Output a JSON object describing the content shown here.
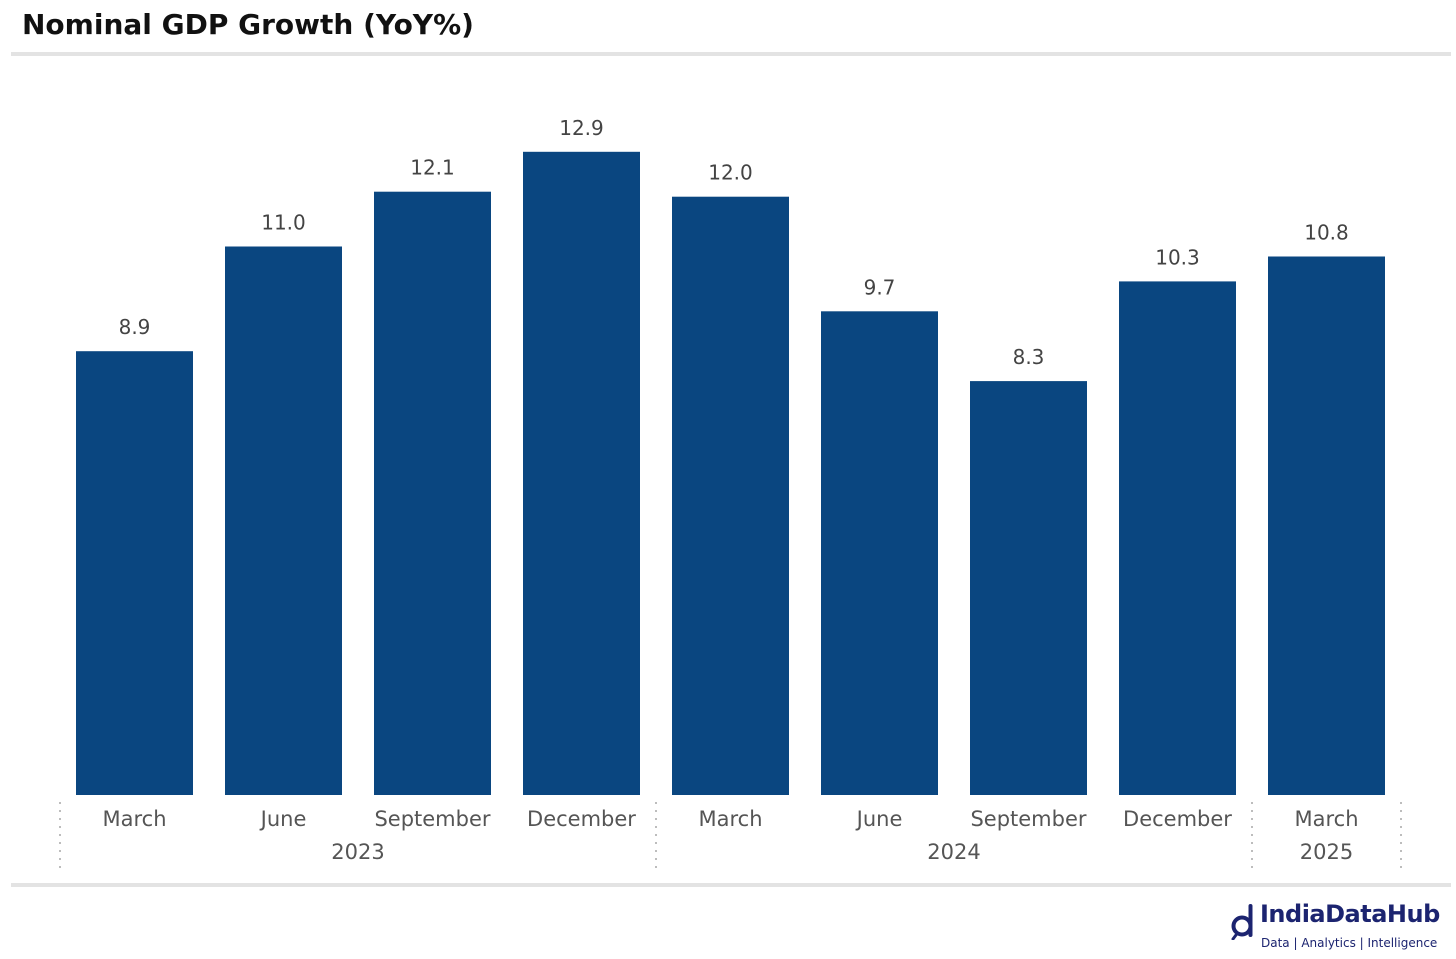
{
  "title": "Nominal GDP Growth (YoY%)",
  "colors": {
    "bar": "#0a4680",
    "label": "#444444",
    "axis_text": "#555555",
    "rule": "#e3e3e3",
    "separator": "#bdbdbd",
    "logo": "#1c2470"
  },
  "chart_data": {
    "type": "bar",
    "title": "Nominal GDP Growth (YoY%)",
    "categories": [
      "March",
      "June",
      "September",
      "December",
      "March",
      "June",
      "September",
      "December",
      "March"
    ],
    "groups": [
      {
        "label": "2023",
        "start": 0,
        "end": 3
      },
      {
        "label": "2024",
        "start": 4,
        "end": 7
      },
      {
        "label": "2025",
        "start": 8,
        "end": 8
      }
    ],
    "series": [
      {
        "values": [
          8.9,
          11.0,
          12.1,
          12.9,
          12.0,
          9.7,
          8.3,
          10.3,
          10.8
        ]
      }
    ],
    "value_labels": [
      "8.9",
      "11.0",
      "12.1",
      "12.9",
      "12.0",
      "9.7",
      "8.3",
      "10.3",
      "10.8"
    ],
    "ylim": [
      0,
      14.5
    ],
    "grid": false,
    "legend": "none",
    "xlabel": "",
    "ylabel": ""
  },
  "logo": {
    "icon": "india-data-hub-logo-icon",
    "name": "IndiaDataHub",
    "tagline": "Data | Analytics | Intelligence"
  }
}
